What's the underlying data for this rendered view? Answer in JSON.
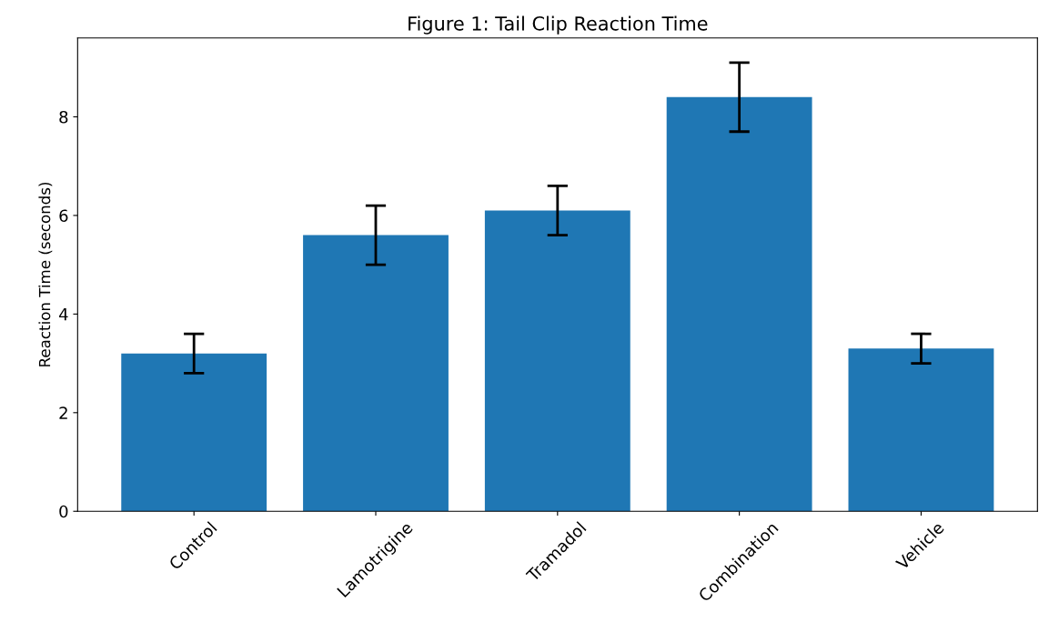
{
  "chart_data": {
    "type": "bar",
    "title": "Figure 1: Tail Clip Reaction Time",
    "ylabel": "Reaction Time (seconds)",
    "categories": [
      "Control",
      "Lamotrigine",
      "Tramadol",
      "Combination",
      "Vehicle"
    ],
    "values": [
      3.2,
      5.6,
      6.1,
      8.4,
      3.3
    ],
    "errors": [
      0.4,
      0.6,
      0.5,
      0.7,
      0.3
    ],
    "color": "#1f77b4",
    "ylim": [
      0,
      9.6
    ],
    "yticks": [
      0,
      2,
      4,
      6,
      8
    ],
    "grid": false
  }
}
